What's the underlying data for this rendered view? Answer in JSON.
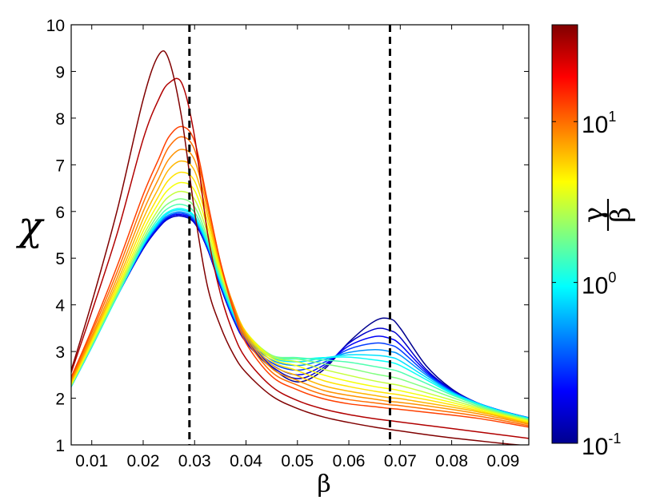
{
  "chart_data": {
    "type": "line",
    "title": "",
    "xlabel": "β",
    "ylabel": "χ",
    "xlim": [
      0.006,
      0.095
    ],
    "ylim": [
      1,
      10
    ],
    "xticks": [
      0.01,
      0.02,
      0.03,
      0.04,
      0.05,
      0.06,
      0.07,
      0.08,
      0.09
    ],
    "xtick_labels": [
      "0.01",
      "0.02",
      "0.03",
      "0.04",
      "0.05",
      "0.06",
      "0.07",
      "0.08",
      "0.09"
    ],
    "yticks": [
      1,
      2,
      3,
      4,
      5,
      6,
      7,
      8,
      9,
      10
    ],
    "ytick_labels": [
      "1",
      "2",
      "3",
      "4",
      "5",
      "6",
      "7",
      "8",
      "9",
      "10"
    ],
    "grid": false,
    "vlines": [
      0.029,
      0.068
    ],
    "x": [
      0.006,
      0.01,
      0.015,
      0.02,
      0.023,
      0.025,
      0.0275,
      0.03,
      0.0325,
      0.035,
      0.0375,
      0.04,
      0.045,
      0.05,
      0.055,
      0.06,
      0.065,
      0.068,
      0.07,
      0.075,
      0.08,
      0.085,
      0.09,
      0.095
    ],
    "series": [
      {
        "gamma_over_beta": 0.1,
        "values": [
          2.25,
          3.1,
          4.2,
          5.2,
          5.65,
          5.85,
          5.9,
          5.75,
          5.2,
          4.4,
          3.7,
          3.2,
          2.65,
          2.35,
          2.6,
          3.2,
          3.65,
          3.7,
          3.5,
          2.7,
          2.2,
          1.9,
          1.72,
          1.58
        ]
      },
      {
        "gamma_over_beta": 0.15,
        "values": [
          2.25,
          3.1,
          4.2,
          5.2,
          5.65,
          5.85,
          5.9,
          5.75,
          5.2,
          4.4,
          3.7,
          3.2,
          2.68,
          2.42,
          2.65,
          3.18,
          3.48,
          3.45,
          3.3,
          2.62,
          2.18,
          1.9,
          1.72,
          1.58
        ]
      },
      {
        "gamma_over_beta": 0.2,
        "values": [
          2.25,
          3.1,
          4.2,
          5.22,
          5.67,
          5.88,
          5.93,
          5.78,
          5.22,
          4.42,
          3.72,
          3.22,
          2.72,
          2.5,
          2.7,
          3.12,
          3.32,
          3.28,
          3.15,
          2.58,
          2.16,
          1.9,
          1.72,
          1.58
        ]
      },
      {
        "gamma_over_beta": 0.3,
        "values": [
          2.25,
          3.1,
          4.2,
          5.24,
          5.7,
          5.9,
          5.96,
          5.8,
          5.24,
          4.44,
          3.74,
          3.25,
          2.76,
          2.6,
          2.76,
          3.05,
          3.18,
          3.14,
          3.03,
          2.54,
          2.15,
          1.9,
          1.72,
          1.58
        ]
      },
      {
        "gamma_over_beta": 0.5,
        "values": [
          2.25,
          3.1,
          4.2,
          5.26,
          5.73,
          5.93,
          5.99,
          5.83,
          5.27,
          4.47,
          3.77,
          3.28,
          2.82,
          2.7,
          2.82,
          2.98,
          3.04,
          3.0,
          2.92,
          2.5,
          2.14,
          1.9,
          1.72,
          1.58
        ]
      },
      {
        "gamma_over_beta": 0.8,
        "values": [
          2.25,
          3.1,
          4.2,
          5.28,
          5.76,
          5.97,
          6.03,
          5.87,
          5.3,
          4.5,
          3.8,
          3.31,
          2.87,
          2.78,
          2.86,
          2.93,
          2.92,
          2.88,
          2.8,
          2.45,
          2.12,
          1.89,
          1.71,
          1.57
        ]
      },
      {
        "gamma_over_beta": 1.0,
        "values": [
          2.25,
          3.1,
          4.2,
          5.3,
          5.8,
          6.0,
          6.06,
          5.9,
          5.33,
          4.53,
          3.83,
          3.34,
          2.9,
          2.84,
          2.87,
          2.88,
          2.82,
          2.77,
          2.7,
          2.4,
          2.1,
          1.88,
          1.7,
          1.56
        ]
      },
      {
        "gamma_over_beta": 1.5,
        "values": [
          2.26,
          3.12,
          4.22,
          5.34,
          5.86,
          6.08,
          6.15,
          5.98,
          5.38,
          4.57,
          3.87,
          3.37,
          2.92,
          2.87,
          2.82,
          2.77,
          2.68,
          2.62,
          2.56,
          2.32,
          2.07,
          1.86,
          1.69,
          1.55
        ]
      },
      {
        "gamma_over_beta": 2.0,
        "values": [
          2.27,
          3.14,
          4.25,
          5.4,
          5.95,
          6.18,
          6.27,
          6.1,
          5.45,
          4.62,
          3.91,
          3.4,
          2.92,
          2.84,
          2.74,
          2.64,
          2.52,
          2.46,
          2.41,
          2.22,
          2.02,
          1.83,
          1.67,
          1.54
        ]
      },
      {
        "gamma_over_beta": 3.0,
        "values": [
          2.28,
          3.17,
          4.3,
          5.48,
          6.05,
          6.32,
          6.43,
          6.26,
          5.55,
          4.68,
          3.96,
          3.42,
          2.9,
          2.78,
          2.62,
          2.49,
          2.37,
          2.31,
          2.27,
          2.12,
          1.96,
          1.8,
          1.65,
          1.52
        ]
      },
      {
        "gamma_over_beta": 4.0,
        "values": [
          2.3,
          3.2,
          4.35,
          5.58,
          6.18,
          6.48,
          6.62,
          6.45,
          5.67,
          4.74,
          4.0,
          3.42,
          2.86,
          2.69,
          2.5,
          2.36,
          2.25,
          2.2,
          2.16,
          2.04,
          1.91,
          1.77,
          1.63,
          1.5
        ]
      },
      {
        "gamma_over_beta": 5.0,
        "values": [
          2.32,
          3.24,
          4.42,
          5.7,
          6.33,
          6.68,
          6.84,
          6.65,
          5.8,
          4.8,
          4.02,
          3.41,
          2.8,
          2.59,
          2.38,
          2.25,
          2.15,
          2.1,
          2.07,
          1.97,
          1.86,
          1.74,
          1.61,
          1.48
        ]
      },
      {
        "gamma_over_beta": 6.5,
        "values": [
          2.35,
          3.28,
          4.5,
          5.84,
          6.5,
          6.9,
          7.08,
          6.87,
          5.93,
          4.85,
          4.02,
          3.38,
          2.72,
          2.48,
          2.27,
          2.15,
          2.06,
          2.01,
          1.99,
          1.9,
          1.81,
          1.71,
          1.59,
          1.46
        ]
      },
      {
        "gamma_over_beta": 8.0,
        "values": [
          2.38,
          3.33,
          4.6,
          6.0,
          6.7,
          7.12,
          7.33,
          7.1,
          6.06,
          4.9,
          4.0,
          3.33,
          2.64,
          2.38,
          2.17,
          2.06,
          1.98,
          1.93,
          1.91,
          1.84,
          1.76,
          1.67,
          1.56,
          1.44
        ]
      },
      {
        "gamma_over_beta": 10.0,
        "values": [
          2.41,
          3.4,
          4.72,
          6.18,
          6.92,
          7.38,
          7.6,
          7.32,
          6.17,
          4.93,
          3.97,
          3.27,
          2.56,
          2.28,
          2.08,
          1.97,
          1.9,
          1.86,
          1.84,
          1.77,
          1.7,
          1.62,
          1.52,
          1.41
        ]
      },
      {
        "gamma_over_beta": 13.0,
        "values": [
          2.45,
          3.47,
          4.85,
          6.36,
          7.12,
          7.6,
          7.82,
          7.5,
          6.22,
          4.92,
          3.9,
          3.18,
          2.47,
          2.18,
          1.99,
          1.88,
          1.82,
          1.78,
          1.76,
          1.7,
          1.64,
          1.57,
          1.48,
          1.38
        ]
      },
      {
        "gamma_over_beta": 30.0,
        "values": [
          2.55,
          3.85,
          5.55,
          7.55,
          8.4,
          8.75,
          8.75,
          7.6,
          5.55,
          4.25,
          3.4,
          2.85,
          2.25,
          1.95,
          1.77,
          1.65,
          1.56,
          1.52,
          1.49,
          1.42,
          1.35,
          1.28,
          1.21,
          1.14
        ]
      },
      {
        "gamma_over_beta": 40.0,
        "values": [
          2.6,
          4.05,
          6.05,
          8.4,
          9.35,
          9.25,
          8.0,
          6.0,
          4.4,
          3.55,
          2.95,
          2.55,
          2.05,
          1.78,
          1.6,
          1.48,
          1.38,
          1.33,
          1.3,
          1.22,
          1.15,
          1.09,
          1.03,
          0.98
        ]
      }
    ],
    "colorbar": {
      "label": "γ/β",
      "scale": "log",
      "range": [
        0.1,
        40
      ],
      "colormap": "jet",
      "tick_labels": [
        {
          "value": 0.1,
          "base": "10",
          "exp": "-1"
        },
        {
          "value": 1.0,
          "base": "10",
          "exp": "0"
        },
        {
          "value": 10.0,
          "base": "10",
          "exp": "1"
        }
      ],
      "label_numerator": "γ",
      "label_denominator": "β"
    }
  }
}
